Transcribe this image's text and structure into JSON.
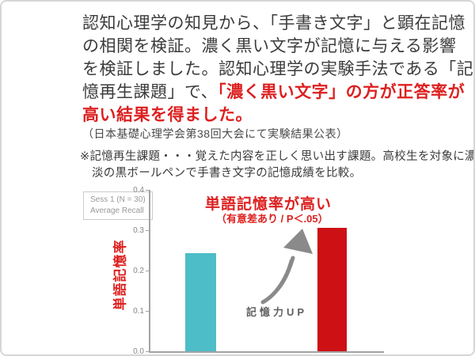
{
  "intro": {
    "lines": [
      {
        "black": "認知心理学の知見から、「手書き文字」と顕在記憶",
        "red": ""
      },
      {
        "black": "の相関を検証。濃く黒い文字が記憶に与える影響",
        "red": ""
      },
      {
        "black": "を検証しました。認知心理学の実験手法である「記",
        "red": ""
      },
      {
        "black": "憶再生課題」で、",
        "red": "「濃く黒い文字」の方が正答率が"
      },
      {
        "black": "",
        "red": "高い結果を得ました。"
      }
    ],
    "publication": "（日本基礎心理学会第38回大会にて実験結果公表）"
  },
  "note": {
    "line1": "※記憶再生課題・・・覚えた内容を正しく思い出す課題。高校生を対象に濃",
    "line2": "淡の黒ボールペンで手書き文字の記憶成績を比較。"
  },
  "chart_data": {
    "type": "bar",
    "categories": [
      "",
      ""
    ],
    "values": [
      0.243,
      0.305
    ],
    "bar_colors": [
      "#4dbdc8",
      "#cc1014"
    ],
    "ylim": [
      0,
      0.4
    ],
    "ytick_labels": [
      "0.4",
      "0.3",
      "0.2",
      "0.1",
      "0.0"
    ],
    "ylabel": "単語記憶率",
    "grid": false,
    "legend": {
      "line1": "Sess 1 (N = 30)",
      "line2": "Average Recall",
      "position": "upper-left-outside"
    },
    "annotations": {
      "headline": "単語記憶率が高い",
      "significance": "（有意差あり / P＜.05）",
      "arrow_label": "記憶力UP"
    }
  },
  "colors": {
    "accent_red_text": "#dd2020",
    "teal_bar": "#4dbdc8",
    "red_bar": "#cc1014",
    "arrow_gray": "#8a8a8a",
    "axis_gray": "#a3a3a3"
  }
}
